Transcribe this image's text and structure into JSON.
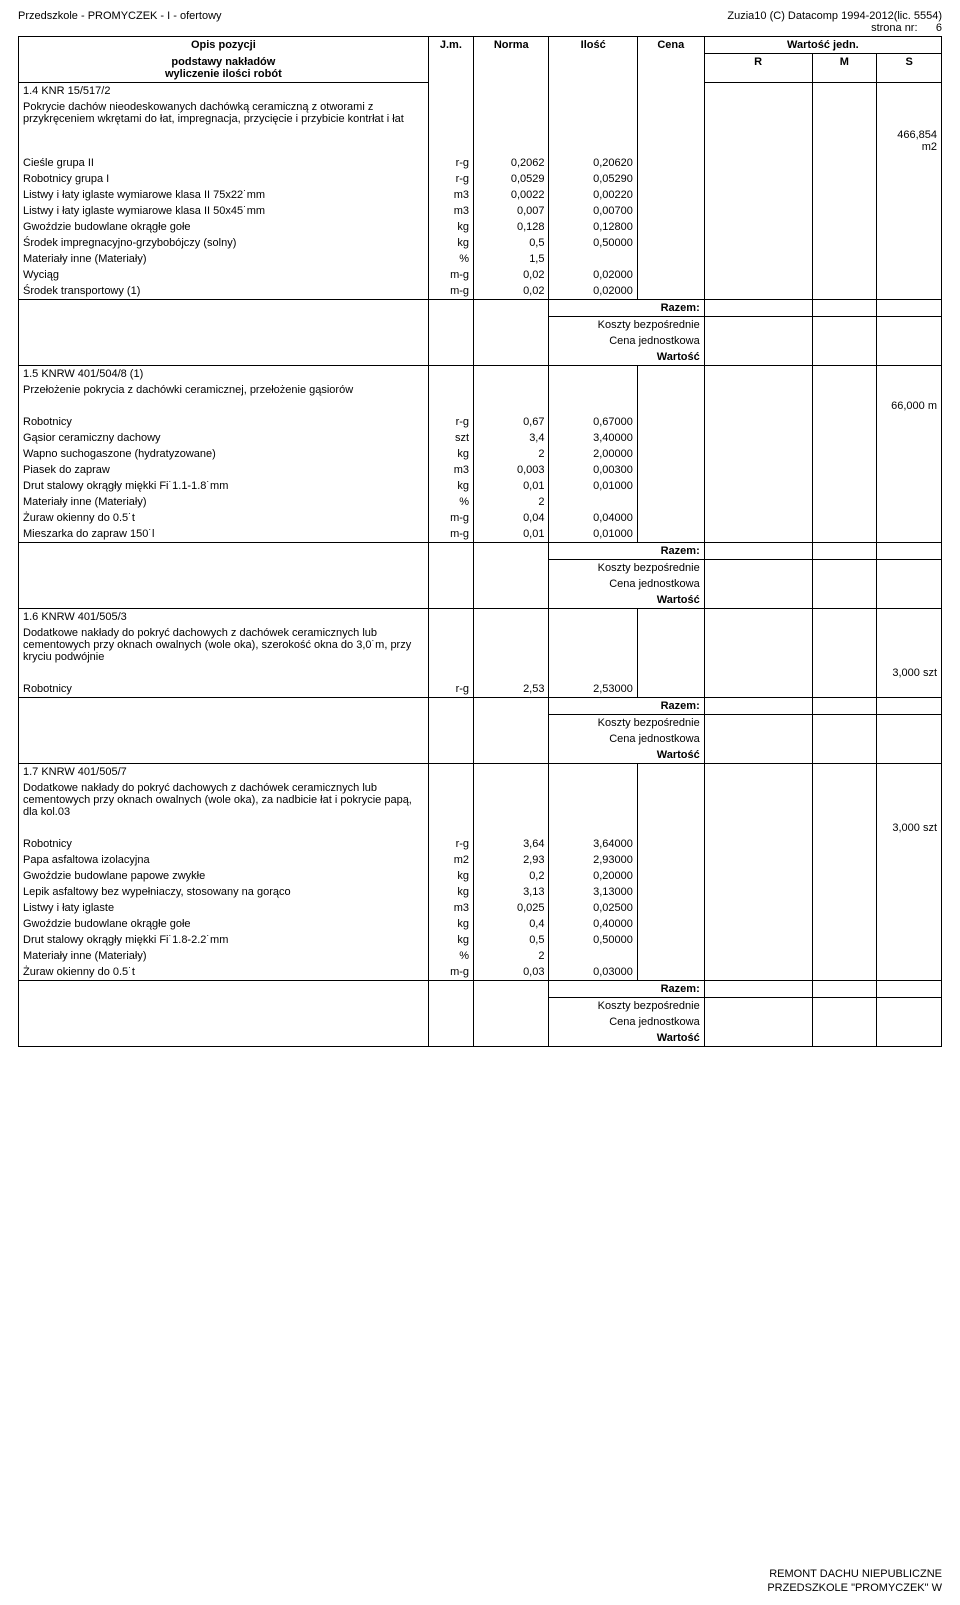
{
  "header": {
    "left": "Przedszkole - PROMYCZEK - I - ofertowy",
    "right1": "Zuzia10 (C) Datacomp 1994-2012(lic. 5554)",
    "right2": "strona nr:",
    "page": "6"
  },
  "tableHeader": {
    "col1a": "Opis pozycji",
    "col1b": "podstawy nakładów",
    "col1c": "wyliczenie ilości robót",
    "jm": "J.m.",
    "norma": "Norma",
    "ilosc": "Ilość",
    "cena": "Cena",
    "wj": "Wartość jedn.",
    "r": "R",
    "m": "M",
    "s": "S"
  },
  "sections": [
    {
      "code": "1.4 KNR 15/517/2",
      "title": "Pokrycie dachów nieodeskowanych dachówką ceramiczną z otworami z przykręceniem wkrętami do łat, impregnacja, przycięcie i przybicie kontrłat i łat",
      "qtyLabel": "466,854 m2",
      "rows": [
        {
          "d": "Cieśle grupa II",
          "jm": "r-g",
          "n": "0,2062",
          "i": "0,20620"
        },
        {
          "d": "Robotnicy grupa I",
          "jm": "r-g",
          "n": "0,0529",
          "i": "0,05290"
        },
        {
          "d": "Listwy i łaty iglaste wymiarowe klasa II 75x22˙mm",
          "jm": "m3",
          "n": "0,0022",
          "i": "0,00220"
        },
        {
          "d": "Listwy i łaty iglaste wymiarowe klasa II 50x45˙mm",
          "jm": "m3",
          "n": "0,007",
          "i": "0,00700"
        },
        {
          "d": "Gwoździe budowlane okrągłe gołe",
          "jm": "kg",
          "n": "0,128",
          "i": "0,12800"
        },
        {
          "d": "Środek impregnacyjno-grzybobójczy (solny)",
          "jm": "kg",
          "n": "0,5",
          "i": "0,50000"
        },
        {
          "d": "Materiały inne (Materiały)",
          "jm": "%",
          "n": "1,5",
          "i": ""
        },
        {
          "d": "Wyciąg",
          "jm": "m-g",
          "n": "0,02",
          "i": "0,02000"
        },
        {
          "d": "Środek transportowy (1)",
          "jm": "m-g",
          "n": "0,02",
          "i": "0,02000"
        }
      ]
    },
    {
      "code": "1.5 KNRW 401/504/8 (1)",
      "title": "Przełożenie pokrycia z dachówki ceramicznej, przełożenie gąsiorów",
      "qtyLabel": "66,000 m",
      "rows": [
        {
          "d": "Robotnicy",
          "jm": "r-g",
          "n": "0,67",
          "i": "0,67000"
        },
        {
          "d": "Gąsior ceramiczny dachowy",
          "jm": "szt",
          "n": "3,4",
          "i": "3,40000"
        },
        {
          "d": "Wapno suchogaszone (hydratyzowane)",
          "jm": "kg",
          "n": "2",
          "i": "2,00000"
        },
        {
          "d": "Piasek do zapraw",
          "jm": "m3",
          "n": "0,003",
          "i": "0,00300"
        },
        {
          "d": "Drut stalowy okrągły miękki Fi˙1.1-1.8˙mm",
          "jm": "kg",
          "n": "0,01",
          "i": "0,01000"
        },
        {
          "d": "Materiały inne (Materiały)",
          "jm": "%",
          "n": "2",
          "i": ""
        },
        {
          "d": "Żuraw okienny do 0.5˙t",
          "jm": "m-g",
          "n": "0,04",
          "i": "0,04000"
        },
        {
          "d": "Mieszarka do zapraw 150˙l",
          "jm": "m-g",
          "n": "0,01",
          "i": "0,01000"
        }
      ]
    },
    {
      "code": "1.6 KNRW 401/505/3",
      "title": "Dodatkowe nakłady do pokryć dachowych z dachówek ceramicznych lub cementowych przy oknach owalnych (wole oka), szerokość okna do 3,0˙m, przy kryciu podwójnie",
      "qtyLabel": "3,000 szt",
      "rows": [
        {
          "d": "Robotnicy",
          "jm": "r-g",
          "n": "2,53",
          "i": "2,53000"
        }
      ]
    },
    {
      "code": "1.7 KNRW 401/505/7",
      "title": "Dodatkowe nakłady do pokryć dachowych z dachówek ceramicznych lub cementowych przy oknach owalnych (wole oka), za nadbicie łat i pokrycie papą, dla kol.03",
      "qtyLabel": "3,000 szt",
      "rows": [
        {
          "d": "Robotnicy",
          "jm": "r-g",
          "n": "3,64",
          "i": "3,64000"
        },
        {
          "d": "Papa asfaltowa izolacyjna",
          "jm": "m2",
          "n": "2,93",
          "i": "2,93000"
        },
        {
          "d": "Gwoździe budowlane papowe zwykłe",
          "jm": "kg",
          "n": "0,2",
          "i": "0,20000"
        },
        {
          "d": "Lepik asfaltowy bez wypełniaczy, stosowany na gorąco",
          "jm": "kg",
          "n": "3,13",
          "i": "3,13000"
        },
        {
          "d": "Listwy i łaty iglaste",
          "jm": "m3",
          "n": "0,025",
          "i": "0,02500"
        },
        {
          "d": "Gwoździe budowlane okrągłe gołe",
          "jm": "kg",
          "n": "0,4",
          "i": "0,40000"
        },
        {
          "d": "Drut stalowy okrągły miękki Fi˙1.8-2.2˙mm",
          "jm": "kg",
          "n": "0,5",
          "i": "0,50000"
        },
        {
          "d": "Materiały inne (Materiały)",
          "jm": "%",
          "n": "2",
          "i": ""
        },
        {
          "d": "Żuraw okienny do 0.5˙t",
          "jm": "m-g",
          "n": "0,03",
          "i": "0,03000"
        }
      ]
    }
  ],
  "totals": {
    "razem": "Razem:",
    "koszty": "Koszty bezpośrednie",
    "cenaj": "Cena jednostkowa",
    "wartosc": "Wartość"
  },
  "footer": {
    "line1": "REMONT DACHU  NIEPUBLICZNE",
    "line2": "PRZEDSZKOLE \"PROMYCZEK\"  W"
  }
}
